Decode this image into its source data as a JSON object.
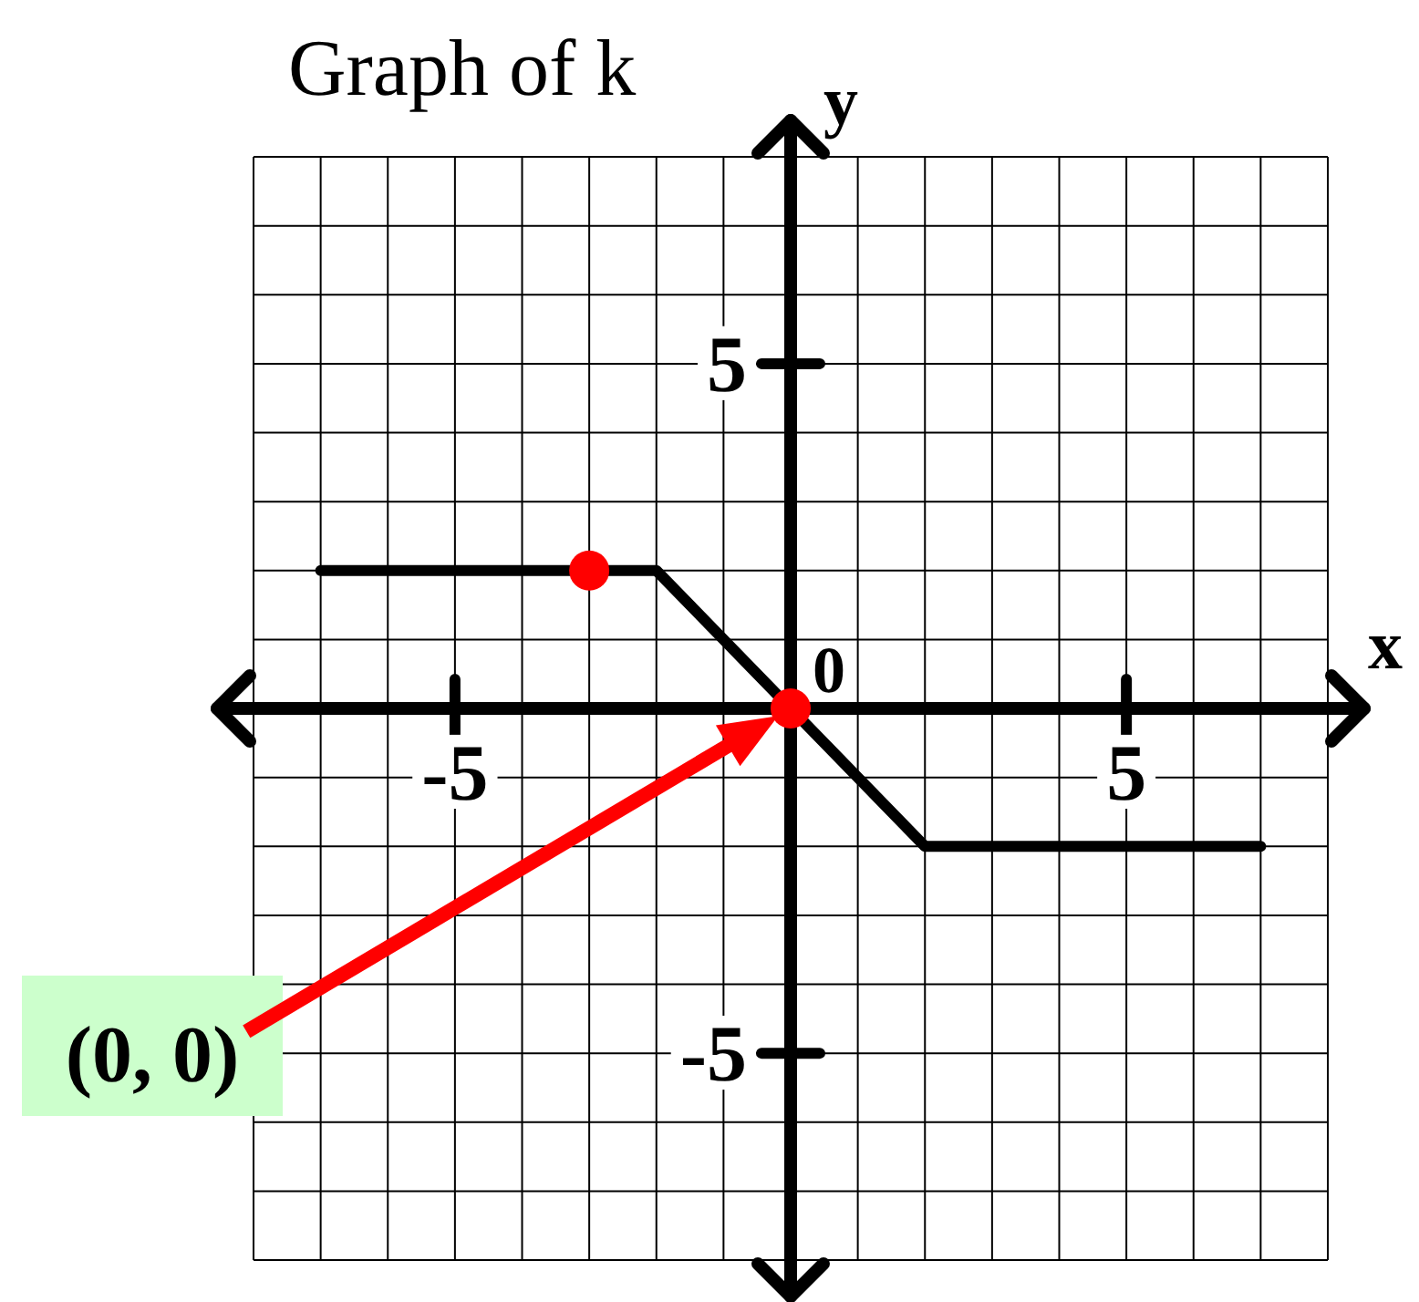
{
  "chart_data": {
    "type": "line",
    "title": "Graph of k",
    "xlabel": "x",
    "ylabel": "y",
    "series": [
      {
        "color": "#000000",
        "x": [
          -7,
          -2,
          0,
          2,
          7
        ],
        "values": [
          2,
          2,
          0,
          -2,
          -2
        ]
      },
      {
        "type": "scatter",
        "color": "#ff0000",
        "marker": "circle",
        "x": [
          -3,
          0
        ],
        "values": [
          2,
          0
        ]
      }
    ],
    "xlim": [
      -8,
      8
    ],
    "ylim": [
      -8,
      8
    ],
    "xticks": [
      {
        "value": -8,
        "label": null
      },
      {
        "value": -7,
        "label": null
      },
      {
        "value": -6,
        "label": null
      },
      -5,
      {
        "value": -4,
        "label": null
      },
      {
        "value": -3,
        "label": null
      },
      {
        "value": -2,
        "label": null
      },
      {
        "value": -1,
        "label": null
      },
      {
        "value": 0,
        "label": null
      },
      {
        "value": 1,
        "label": null
      },
      {
        "value": 2,
        "label": null
      },
      {
        "value": 3,
        "label": null
      },
      {
        "value": 4,
        "label": null
      },
      5,
      {
        "value": 6,
        "label": null
      },
      {
        "value": 7,
        "label": null
      },
      {
        "value": 8,
        "label": null
      }
    ],
    "yticks": [
      {
        "value": -8,
        "label": null
      },
      {
        "value": -7,
        "label": null
      },
      {
        "value": -6,
        "label": null
      },
      -5,
      {
        "value": -4,
        "label": null
      },
      {
        "value": -3,
        "label": null
      },
      {
        "value": -2,
        "label": null
      },
      {
        "value": -1,
        "label": null
      },
      {
        "value": 0,
        "label": null
      },
      {
        "value": 1,
        "label": null
      },
      {
        "value": 2,
        "label": null
      },
      {
        "value": 3,
        "label": null
      },
      {
        "value": 4,
        "label": null
      },
      5,
      {
        "value": 6,
        "label": null
      },
      {
        "value": 7,
        "label": null
      },
      {
        "value": 8,
        "label": null
      }
    ],
    "grid": true,
    "annotations": [
      "(0, 0)",
      {
        "text": "0",
        "x": 0,
        "y": 0
      }
    ]
  }
}
